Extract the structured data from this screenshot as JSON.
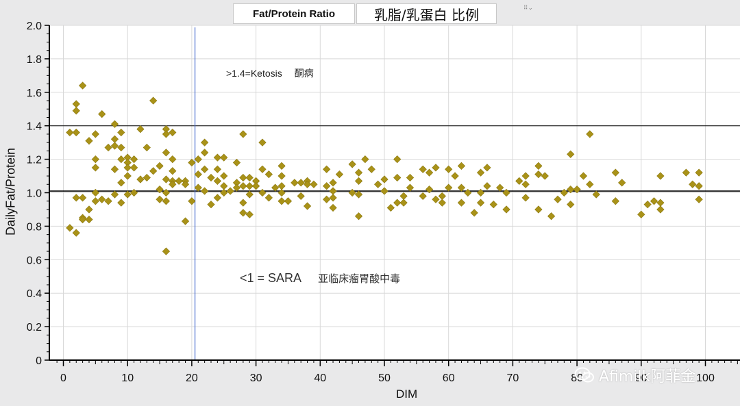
{
  "header": {
    "title_en": "Fat/Protein Ratio",
    "title_cn": "乳脂/乳蛋白 比例",
    "tab_menu_glyph": "⠿⌄"
  },
  "annotations": {
    "ketosis_en": ">1.4=Ketosis",
    "ketosis_cn": "酮病",
    "sara_en": "<1 = SARA",
    "sara_cn": "亚临床瘤胃酸中毒"
  },
  "watermark": {
    "text": "Afimilk阿菲金",
    "icon": "wechat-icon"
  },
  "colors": {
    "marker": "#a99218",
    "marker_stroke": "#8a7710",
    "plot_bg": "#ffffff",
    "grid": "#d8d8d8",
    "threshold_line": "#000000",
    "dim_line": "#4a6fd0",
    "frame_bg": "#e9e9ea"
  },
  "chart_data": {
    "type": "scatter",
    "title": "Fat/Protein Ratio",
    "xlabel": "DIM",
    "ylabel": "DailyFat/Protein",
    "xlim": [
      -2,
      107
    ],
    "ylim": [
      0,
      2.0
    ],
    "xticks": [
      0,
      10,
      20,
      30,
      40,
      50,
      60,
      70,
      80,
      90,
      100
    ],
    "xtick_labels": [
      "0",
      "10",
      "20",
      "30",
      "40",
      "50",
      "60",
      "70",
      "80",
      "90",
      "100"
    ],
    "yticks": [
      0,
      0.2,
      0.4,
      0.6,
      0.8,
      1.0,
      1.2,
      1.4,
      1.6,
      1.8,
      2.0
    ],
    "ytick_labels": [
      "0",
      "0.2",
      "0.4",
      "0.6",
      "0.8",
      "1.0",
      "1.2",
      "1.4",
      "1.6",
      "1.8",
      "2.0"
    ],
    "grid": true,
    "hlines": [
      1.4,
      1.01
    ],
    "vlines": [
      20.5
    ],
    "series": [
      {
        "marker": "diamond",
        "points": [
          [
            1,
            1.36
          ],
          [
            1,
            0.79
          ],
          [
            2,
            1.53
          ],
          [
            2,
            1.49
          ],
          [
            2,
            1.36
          ],
          [
            2,
            0.97
          ],
          [
            2,
            0.76
          ],
          [
            3,
            1.64
          ],
          [
            3,
            0.97
          ],
          [
            3,
            0.85
          ],
          [
            3,
            0.84
          ],
          [
            4,
            1.31
          ],
          [
            4,
            0.9
          ],
          [
            4,
            0.84
          ],
          [
            5,
            1.35
          ],
          [
            5,
            1.2
          ],
          [
            5,
            1.15
          ],
          [
            5,
            1.0
          ],
          [
            5,
            0.95
          ],
          [
            6,
            1.47
          ],
          [
            6,
            0.96
          ],
          [
            7,
            1.27
          ],
          [
            7,
            0.95
          ],
          [
            8,
            1.41
          ],
          [
            8,
            1.32
          ],
          [
            8,
            1.28
          ],
          [
            8,
            1.14
          ],
          [
            8,
            0.99
          ],
          [
            9,
            1.36
          ],
          [
            9,
            1.27
          ],
          [
            9,
            1.2
          ],
          [
            9,
            1.06
          ],
          [
            9,
            0.94
          ],
          [
            10,
            1.21
          ],
          [
            10,
            1.18
          ],
          [
            10,
            1.15
          ],
          [
            10,
            1.1
          ],
          [
            10,
            0.99
          ],
          [
            11,
            1.2
          ],
          [
            11,
            1.15
          ],
          [
            11,
            1.0
          ],
          [
            12,
            1.38
          ],
          [
            12,
            1.08
          ],
          [
            13,
            1.27
          ],
          [
            13,
            1.09
          ],
          [
            14,
            1.55
          ],
          [
            14,
            1.13
          ],
          [
            15,
            1.16
          ],
          [
            15,
            1.02
          ],
          [
            15,
            0.96
          ],
          [
            16,
            1.38
          ],
          [
            16,
            1.35
          ],
          [
            16,
            1.24
          ],
          [
            16,
            1.08
          ],
          [
            16,
            1.0
          ],
          [
            16,
            0.95
          ],
          [
            16,
            0.65
          ],
          [
            17,
            1.36
          ],
          [
            17,
            1.2
          ],
          [
            17,
            1.13
          ],
          [
            17,
            1.07
          ],
          [
            17,
            1.05
          ],
          [
            18,
            1.07
          ],
          [
            19,
            1.07
          ],
          [
            19,
            1.05
          ],
          [
            19,
            0.83
          ],
          [
            20,
            1.18
          ],
          [
            20,
            0.95
          ],
          [
            21,
            1.2
          ],
          [
            21,
            1.11
          ],
          [
            21,
            1.03
          ],
          [
            22,
            1.3
          ],
          [
            22,
            1.24
          ],
          [
            22,
            1.14
          ],
          [
            22,
            1.01
          ],
          [
            23,
            1.09
          ],
          [
            23,
            0.93
          ],
          [
            24,
            1.21
          ],
          [
            24,
            1.14
          ],
          [
            24,
            1.07
          ],
          [
            24,
            0.97
          ],
          [
            25,
            1.21
          ],
          [
            25,
            1.1
          ],
          [
            25,
            1.04
          ],
          [
            25,
            1.0
          ],
          [
            26,
            1.01
          ],
          [
            27,
            1.18
          ],
          [
            27,
            1.06
          ],
          [
            27,
            1.03
          ],
          [
            28,
            1.35
          ],
          [
            28,
            1.09
          ],
          [
            28,
            1.04
          ],
          [
            28,
            0.94
          ],
          [
            28,
            0.88
          ],
          [
            29,
            1.09
          ],
          [
            29,
            1.04
          ],
          [
            29,
            0.99
          ],
          [
            29,
            0.87
          ],
          [
            30,
            1.07
          ],
          [
            30,
            1.04
          ],
          [
            31,
            1.3
          ],
          [
            31,
            1.14
          ],
          [
            31,
            1.0
          ],
          [
            32,
            1.11
          ],
          [
            32,
            0.97
          ],
          [
            33,
            1.03
          ],
          [
            34,
            1.16
          ],
          [
            34,
            1.1
          ],
          [
            34,
            1.04
          ],
          [
            34,
            1.0
          ],
          [
            34,
            0.95
          ],
          [
            35,
            0.95
          ],
          [
            36,
            1.06
          ],
          [
            37,
            1.06
          ],
          [
            37,
            0.98
          ],
          [
            38,
            1.07
          ],
          [
            38,
            1.05
          ],
          [
            38,
            0.92
          ],
          [
            39,
            1.05
          ],
          [
            41,
            1.14
          ],
          [
            41,
            1.04
          ],
          [
            41,
            0.96
          ],
          [
            42,
            1.06
          ],
          [
            42,
            1.01
          ],
          [
            42,
            0.97
          ],
          [
            42,
            0.91
          ],
          [
            43,
            1.11
          ],
          [
            45,
            1.17
          ],
          [
            45,
            1.0
          ],
          [
            46,
            1.12
          ],
          [
            46,
            1.07
          ],
          [
            46,
            0.99
          ],
          [
            46,
            0.86
          ],
          [
            47,
            1.2
          ],
          [
            48,
            1.14
          ],
          [
            49,
            1.05
          ],
          [
            50,
            1.08
          ],
          [
            50,
            1.01
          ],
          [
            51,
            0.91
          ],
          [
            52,
            1.2
          ],
          [
            52,
            1.09
          ],
          [
            52,
            0.94
          ],
          [
            53,
            0.94
          ],
          [
            53,
            0.98
          ],
          [
            54,
            1.09
          ],
          [
            54,
            1.03
          ],
          [
            56,
            1.14
          ],
          [
            56,
            0.98
          ],
          [
            57,
            1.12
          ],
          [
            57,
            1.02
          ],
          [
            58,
            1.15
          ],
          [
            58,
            0.96
          ],
          [
            59,
            0.98
          ],
          [
            59,
            0.94
          ],
          [
            60,
            1.14
          ],
          [
            60,
            1.03
          ],
          [
            61,
            1.1
          ],
          [
            62,
            1.16
          ],
          [
            62,
            1.03
          ],
          [
            62,
            0.94
          ],
          [
            63,
            1.0
          ],
          [
            64,
            0.88
          ],
          [
            65,
            1.12
          ],
          [
            65,
            1.0
          ],
          [
            65,
            0.94
          ],
          [
            66,
            1.15
          ],
          [
            66,
            1.04
          ],
          [
            67,
            0.93
          ],
          [
            68,
            1.03
          ],
          [
            69,
            1.0
          ],
          [
            69,
            0.9
          ],
          [
            71,
            1.07
          ],
          [
            72,
            1.1
          ],
          [
            72,
            1.05
          ],
          [
            72,
            0.97
          ],
          [
            74,
            1.16
          ],
          [
            74,
            1.11
          ],
          [
            74,
            0.9
          ],
          [
            75,
            1.1
          ],
          [
            76,
            0.86
          ],
          [
            77,
            0.96
          ],
          [
            78,
            1.0
          ],
          [
            79,
            1.23
          ],
          [
            79,
            1.02
          ],
          [
            79,
            0.93
          ],
          [
            80,
            1.02
          ],
          [
            81,
            1.1
          ],
          [
            82,
            1.35
          ],
          [
            82,
            1.05
          ],
          [
            83,
            0.99
          ],
          [
            86,
            1.12
          ],
          [
            86,
            0.95
          ],
          [
            87,
            1.06
          ],
          [
            90,
            0.87
          ],
          [
            91,
            0.93
          ],
          [
            92,
            0.95
          ],
          [
            93,
            1.1
          ],
          [
            93,
            0.94
          ],
          [
            93,
            0.9
          ],
          [
            97,
            1.12
          ],
          [
            98,
            1.05
          ],
          [
            99,
            1.12
          ],
          [
            99,
            1.04
          ],
          [
            99,
            0.96
          ]
        ]
      }
    ]
  }
}
